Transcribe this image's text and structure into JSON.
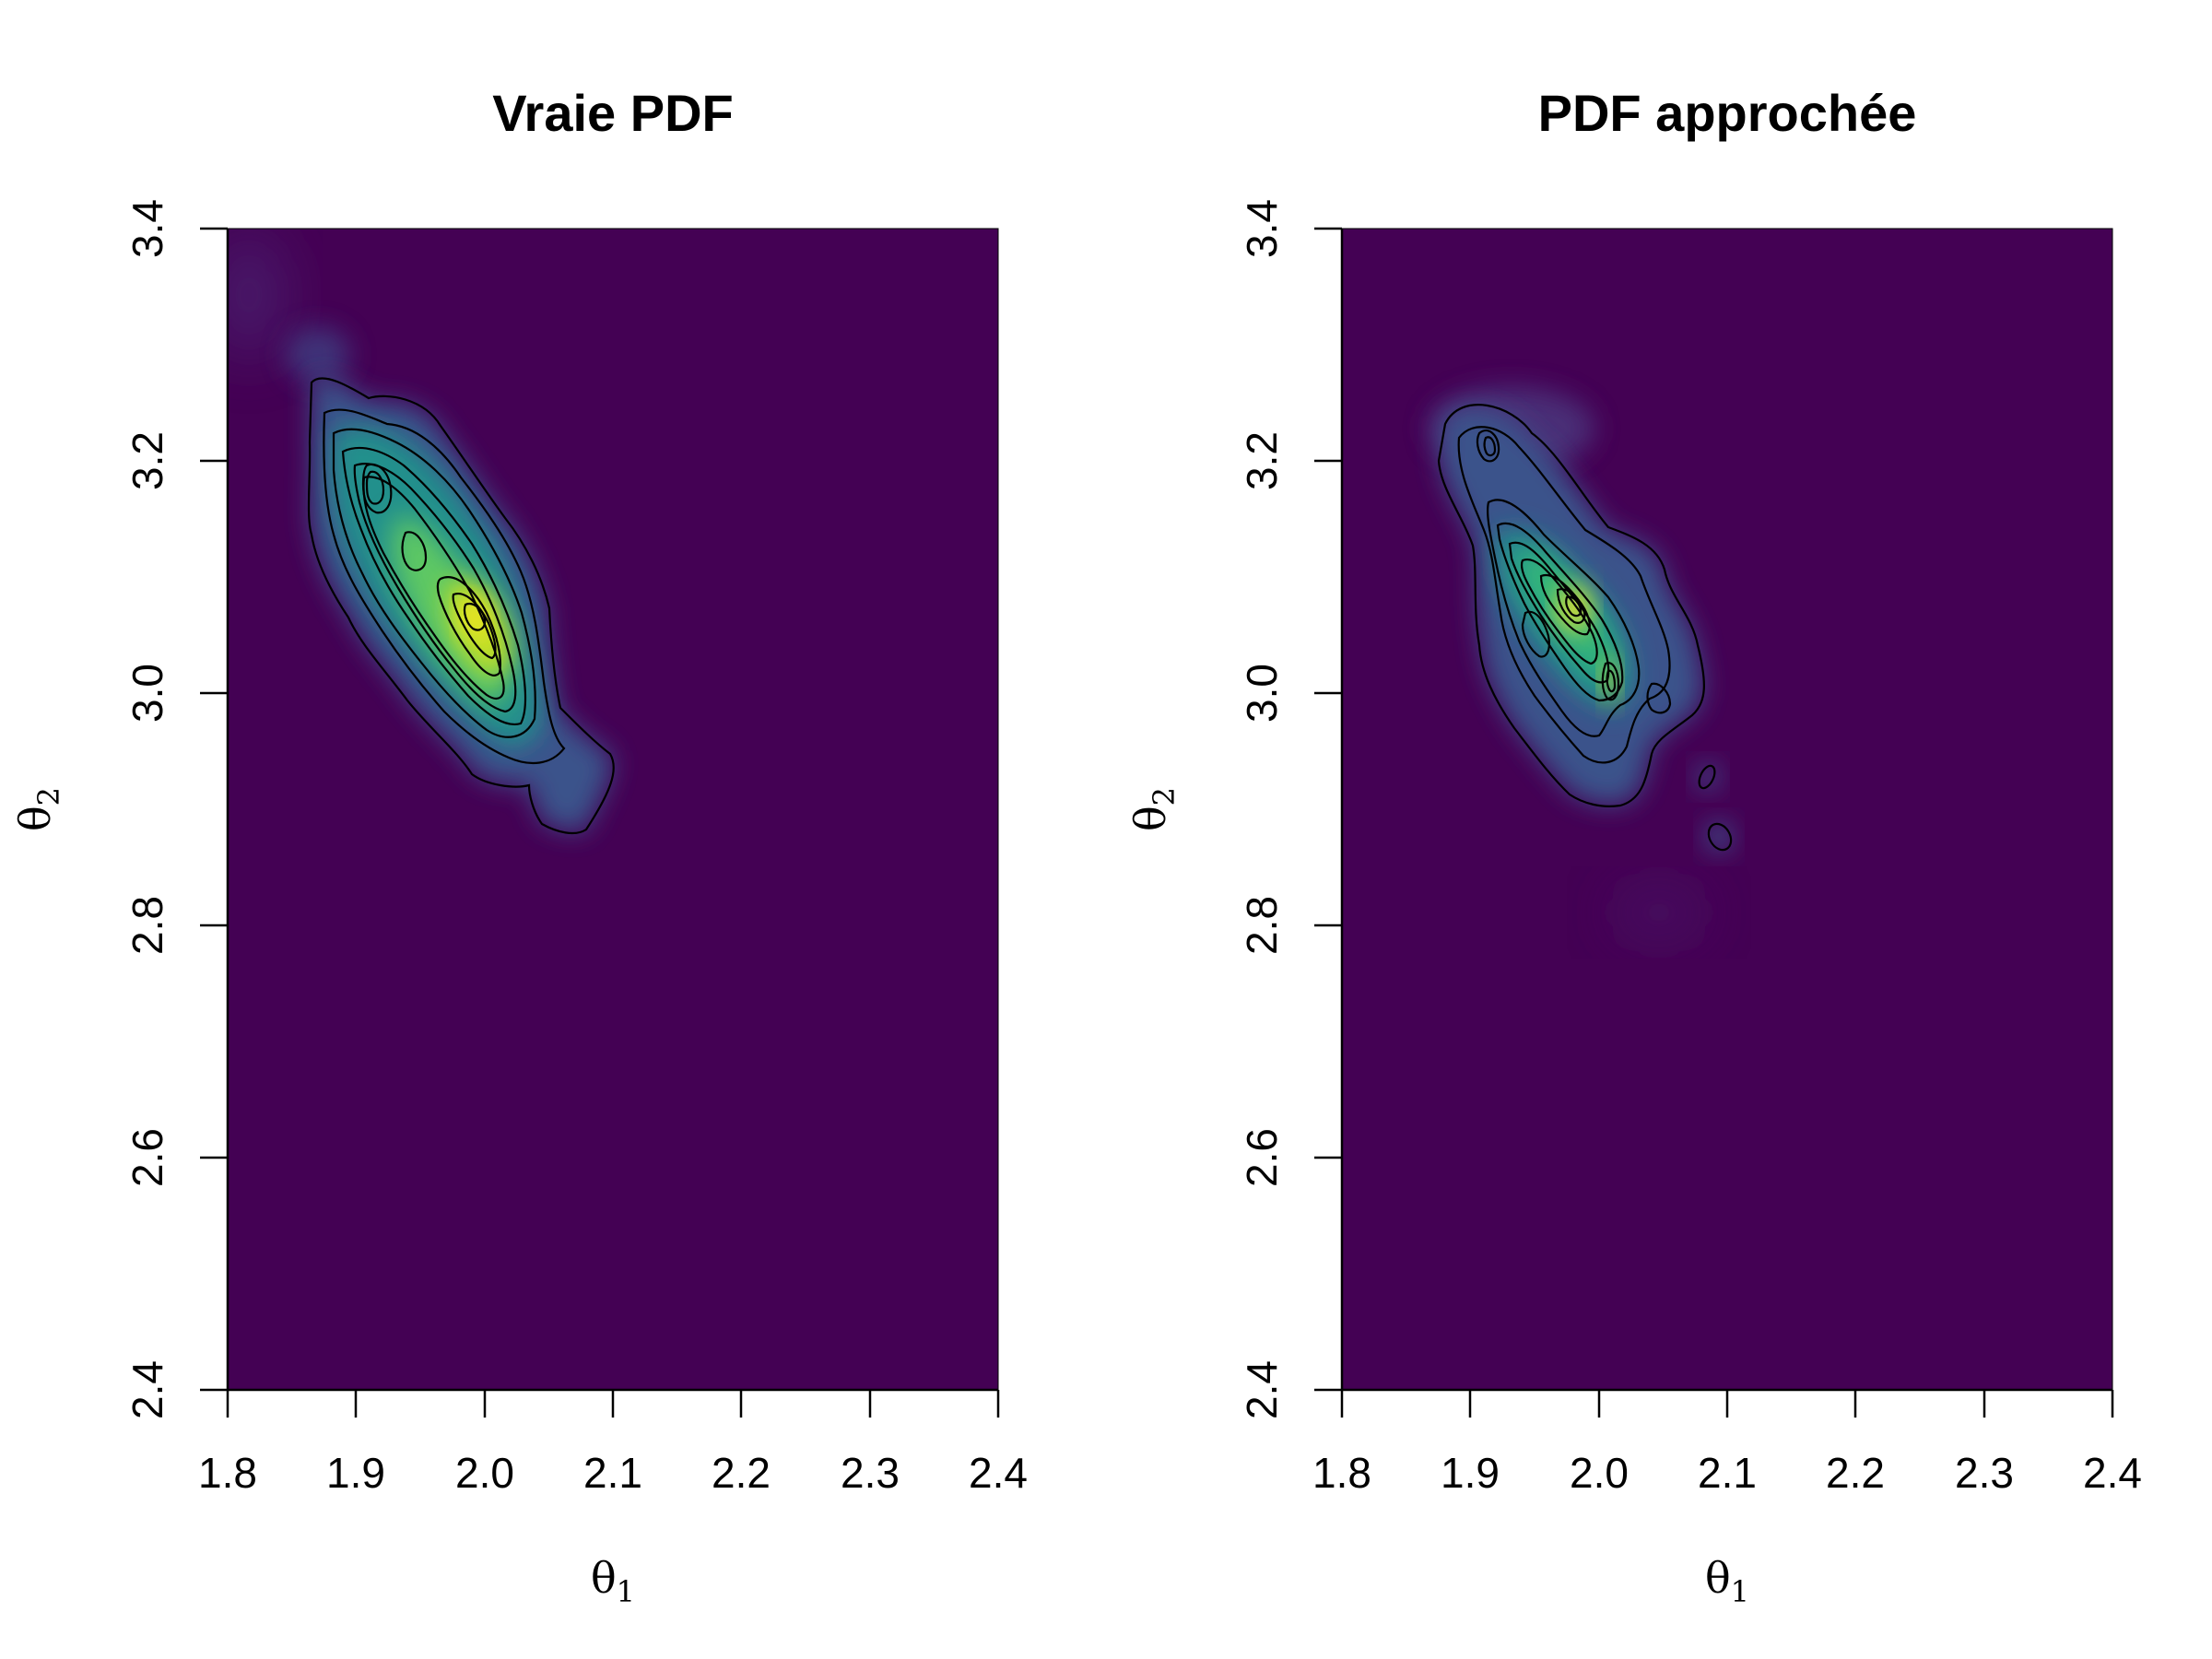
{
  "chart_data": [
    {
      "type": "heatmap",
      "title": "Vraie PDF",
      "xlabel": "θ1",
      "ylabel": "θ2",
      "xlim": [
        1.8,
        2.4
      ],
      "ylim": [
        2.4,
        3.4
      ],
      "xticks": [
        "1.8",
        "1.9",
        "2.0",
        "2.1",
        "2.2",
        "2.3",
        "2.4"
      ],
      "yticks": [
        "2.4",
        "2.6",
        "2.8",
        "3.0",
        "3.2",
        "3.4"
      ],
      "colormap": [
        "#440154",
        "#3b528b",
        "#21908c",
        "#5dc863",
        "#fde725"
      ],
      "contour_levels": 12,
      "modes": [
        {
          "x": 1.917,
          "y": 3.18,
          "density": 0.8
        },
        {
          "x": 1.95,
          "y": 3.125,
          "density": 0.85
        },
        {
          "x": 1.992,
          "y": 3.068,
          "density": 1.0
        },
        {
          "x": 2.01,
          "y": 3.03,
          "density": 0.88
        }
      ],
      "support": {
        "x": [
          1.865,
          2.08
        ],
        "y": [
          2.875,
          3.27
        ]
      }
    },
    {
      "type": "heatmap",
      "title": "PDF approchée",
      "xlabel": "θ1",
      "ylabel": "θ2",
      "xlim": [
        1.8,
        2.4
      ],
      "ylim": [
        2.4,
        3.4
      ],
      "xticks": [
        "1.8",
        "1.9",
        "2.0",
        "2.1",
        "2.2",
        "2.3",
        "2.4"
      ],
      "yticks": [
        "2.4",
        "2.6",
        "2.8",
        "3.0",
        "3.2",
        "3.4"
      ],
      "colormap": [
        "#440154",
        "#3b528b",
        "#21908c",
        "#5dc863",
        "#fde725"
      ],
      "contour_levels": 14,
      "modes": [
        {
          "x": 1.91,
          "y": 3.225,
          "density": 0.45
        },
        {
          "x": 1.985,
          "y": 3.068,
          "density": 1.0
        },
        {
          "x": 2.01,
          "y": 3.01,
          "density": 0.8
        },
        {
          "x": 2.055,
          "y": 2.99,
          "density": 0.4
        },
        {
          "x": 2.085,
          "y": 2.93,
          "density": 0.15
        },
        {
          "x": 2.095,
          "y": 2.87,
          "density": 0.15
        }
      ],
      "support": {
        "x": [
          1.885,
          2.1
        ],
        "y": [
          2.86,
          3.26
        ]
      }
    }
  ]
}
